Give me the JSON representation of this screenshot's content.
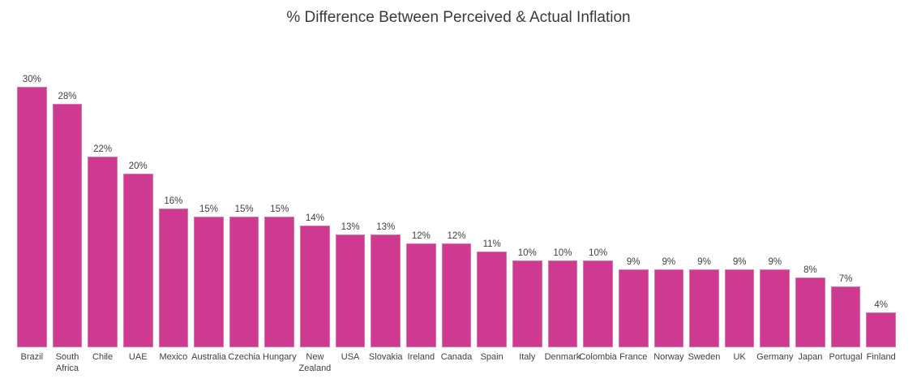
{
  "title": "% Difference Between Perceived & Actual Inflation",
  "colors": {
    "background": "#ffffff",
    "bar": "#ce3a8f",
    "bar_edge": "#de74ac",
    "title_text": "#3a3a3a",
    "label_text": "#404040"
  },
  "chart_data": {
    "type": "bar",
    "title": "% Difference Between Perceived & Actual Inflation",
    "xlabel": "",
    "ylabel": "",
    "ylim": [
      0,
      30
    ],
    "grid": false,
    "legend": false,
    "bar_color": "#ce3a8f",
    "categories": [
      "Brazil",
      "South Africa",
      "Chile",
      "UAE",
      "Mexico",
      "Australia",
      "Czechia",
      "Hungary",
      "New Zealand",
      "USA",
      "Slovakia",
      "Ireland",
      "Canada",
      "Spain",
      "Italy",
      "Denmark",
      "Colombia",
      "France",
      "Norway",
      "Sweden",
      "UK",
      "Germany",
      "Japan",
      "Portugal",
      "Finland"
    ],
    "values": [
      30,
      28,
      22,
      20,
      16,
      15,
      15,
      15,
      14,
      13,
      13,
      12,
      12,
      11,
      10,
      10,
      10,
      9,
      9,
      9,
      9,
      9,
      8,
      7,
      4
    ],
    "value_labels": [
      "30%",
      "28%",
      "22%",
      "20%",
      "16%",
      "15%",
      "15%",
      "15%",
      "14%",
      "13%",
      "13%",
      "12%",
      "12%",
      "11%",
      "10%",
      "10%",
      "10%",
      "9%",
      "9%",
      "9%",
      "9%",
      "9%",
      "8%",
      "7%",
      "4%"
    ]
  }
}
